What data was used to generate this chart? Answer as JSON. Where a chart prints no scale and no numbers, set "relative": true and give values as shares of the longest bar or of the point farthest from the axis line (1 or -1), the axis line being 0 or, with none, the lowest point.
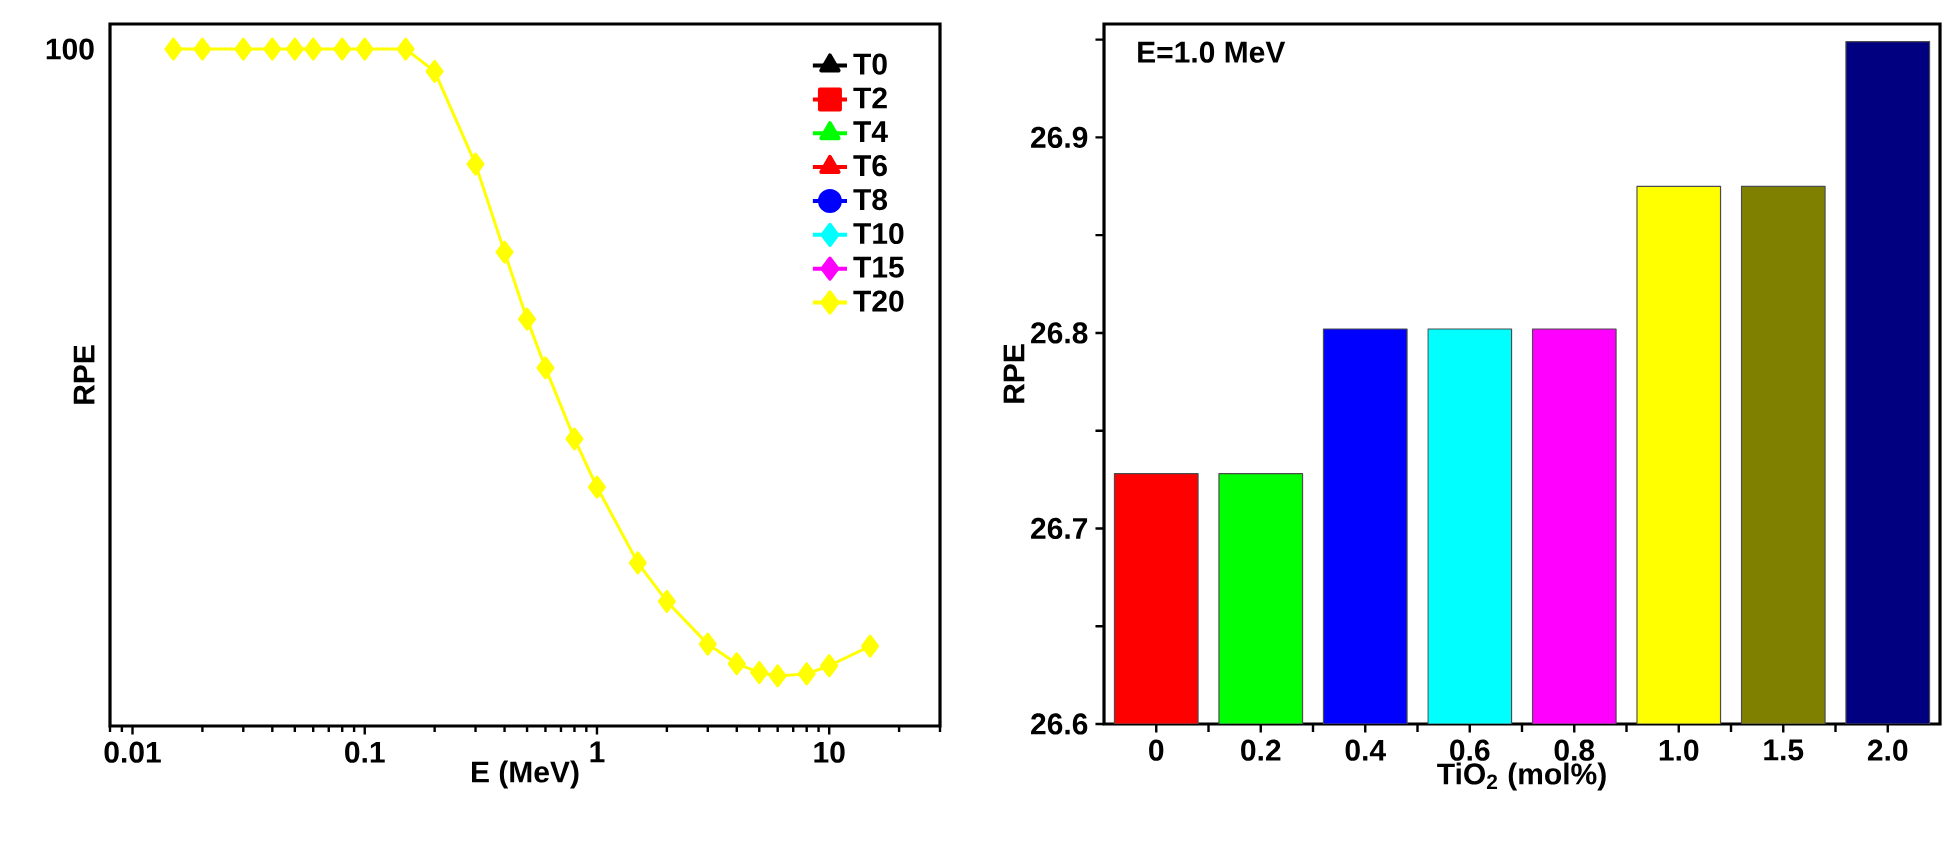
{
  "chart_data": [
    {
      "type": "line",
      "xlabel": "E (MeV)",
      "ylabel": "RPE",
      "log": "x",
      "legend": "top right",
      "line_style": "solid",
      "relative": true,
      "annotations": [
        "100"
      ],
      "x": [
        0.015,
        0.02,
        0.03,
        0.04,
        0.05,
        0.06,
        0.08,
        0.1,
        0.15,
        0.2,
        0.3,
        0.4,
        0.5,
        0.6,
        0.8,
        1,
        1.5,
        2,
        3,
        4,
        5,
        6,
        8,
        10,
        15
      ],
      "xlim": [
        0.008,
        30
      ],
      "xticks": [
        0.01,
        0.1,
        1,
        10
      ],
      "series": [
        {
          "name": "T0",
          "color": "#000000",
          "marker": "triangle",
          "values": [
            null,
            null,
            null,
            null,
            null,
            null,
            null,
            null,
            null,
            null,
            null,
            null,
            null,
            null,
            null,
            null,
            null,
            null,
            null,
            null,
            null,
            null,
            null,
            null,
            null
          ]
        },
        {
          "name": "T2",
          "color": "#ff0000",
          "marker": "square",
          "values": [
            null,
            null,
            null,
            null,
            null,
            null,
            null,
            null,
            null,
            null,
            null,
            null,
            null,
            null,
            null,
            null,
            null,
            null,
            null,
            null,
            null,
            null,
            null,
            null,
            null
          ]
        },
        {
          "name": "T4",
          "color": "#00ff00",
          "marker": "triangle",
          "values": [
            null,
            null,
            null,
            null,
            null,
            null,
            null,
            null,
            null,
            null,
            null,
            null,
            null,
            null,
            null,
            null,
            null,
            null,
            null,
            null,
            null,
            null,
            null,
            null,
            null
          ]
        },
        {
          "name": "T6",
          "color": "#ff0000",
          "marker": "triangle",
          "values": [
            null,
            null,
            null,
            null,
            null,
            null,
            null,
            null,
            null,
            null,
            null,
            null,
            null,
            null,
            null,
            null,
            null,
            null,
            null,
            null,
            null,
            null,
            null,
            null,
            null
          ]
        },
        {
          "name": "T8",
          "color": "#0000ff",
          "marker": "circle",
          "values": [
            null,
            null,
            null,
            null,
            null,
            null,
            null,
            null,
            null,
            null,
            null,
            null,
            null,
            null,
            null,
            null,
            null,
            null,
            null,
            null,
            null,
            null,
            null,
            null,
            null
          ]
        },
        {
          "name": "T10",
          "color": "#00ffff",
          "marker": "diamond",
          "values": [
            null,
            null,
            null,
            null,
            null,
            null,
            null,
            null,
            null,
            null,
            null,
            null,
            null,
            null,
            null,
            null,
            null,
            null,
            null,
            null,
            null,
            null,
            null,
            null,
            null
          ]
        },
        {
          "name": "T15",
          "color": "#ff00ff",
          "marker": "diamond",
          "values": [
            null,
            null,
            null,
            null,
            null,
            null,
            null,
            null,
            null,
            null,
            null,
            null,
            null,
            null,
            null,
            null,
            null,
            null,
            null,
            null,
            null,
            null,
            null,
            null,
            null
          ]
        },
        {
          "name": "T20",
          "color": "#ffff00",
          "marker": "diamond",
          "values": [
            1,
            1,
            1,
            1,
            1,
            1,
            1,
            1,
            1,
            0.967,
            0.83,
            0.7,
            0.601,
            0.529,
            0.424,
            0.353,
            0.241,
            0.184,
            0.121,
            0.092,
            0.079,
            0.074,
            0.077,
            0.089,
            0.118
          ]
        }
      ]
    },
    {
      "type": "bar",
      "xlabel": "TiO$_{2}$ (mol%)",
      "ylabel": "RPE",
      "annotations": [
        "E=1.0 MeV"
      ],
      "categories": [
        "0",
        "0.2",
        "0.4",
        "0.6",
        "0.8",
        "1.0",
        "1.5",
        "2.0"
      ],
      "values": [
        26.728,
        26.728,
        26.802,
        26.802,
        26.802,
        26.875,
        26.875,
        26.949
      ],
      "colors": [
        "#ff0000",
        "#00ff00",
        "#0000ff",
        "#00ffff",
        "#ff00ff",
        "#ffff00",
        "#808000",
        "#000080"
      ],
      "ylim": [
        26.6,
        26.958
      ],
      "yticks": [
        26.6,
        {
          "value": 26.65,
          "label": null
        },
        26.7,
        {
          "value": 26.75,
          "label": null
        },
        26.8,
        {
          "value": 26.85,
          "label": null
        },
        26.9,
        {
          "value": 26.95,
          "label": null
        }
      ]
    }
  ]
}
